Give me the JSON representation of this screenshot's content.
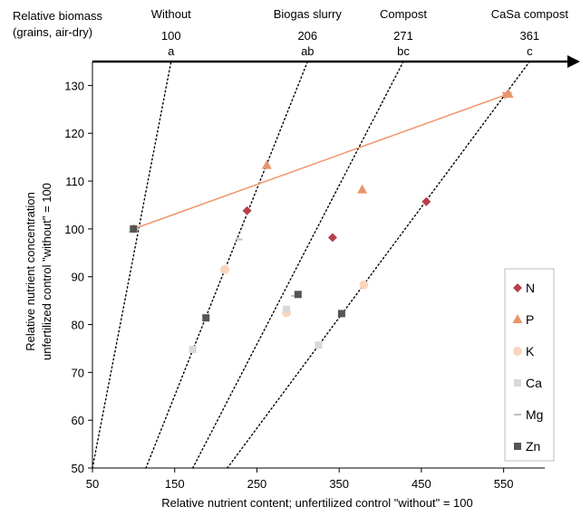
{
  "chart_data": {
    "type": "scatter",
    "title": "",
    "xlabel": "Relative nutrient content; unfertilized control \"without\" = 100",
    "ylabel_lines": [
      "Relative nutrient concentration",
      "unfertilized control \"without\" = 100"
    ],
    "biomass_label_lines": [
      "Relative biomass",
      "(grains, air-dry)"
    ],
    "xlim": [
      50,
      600
    ],
    "ylim": [
      50,
      135
    ],
    "x_ticks": [
      50,
      150,
      250,
      350,
      450,
      550
    ],
    "y_ticks": [
      50,
      60,
      70,
      80,
      90,
      100,
      110,
      120,
      130
    ],
    "grid": false,
    "legend_position": "right",
    "treatments": [
      {
        "name": "Without",
        "biomass": "100",
        "group": "a",
        "line": {
          "x_at_50": 50,
          "x_at_130": 140
        }
      },
      {
        "name": "Biogas slurry",
        "biomass": "206",
        "group": "ab",
        "line": {
          "x_at_50": 115,
          "x_at_130": 300
        }
      },
      {
        "name": "Compost",
        "biomass": "271",
        "group": "bc",
        "line": {
          "x_at_50": 172,
          "x_at_130": 413
        }
      },
      {
        "name": "CaSa compost",
        "biomass": "361",
        "group": "c",
        "line": {
          "x_at_50": 214,
          "x_at_130": 560
        }
      }
    ],
    "arrow": {
      "from": [
        100,
        100
      ],
      "to": [
        560,
        128.5
      ],
      "color": "#f0956a"
    },
    "series": [
      {
        "name": "N",
        "marker": "diamond",
        "color": "#b5404a",
        "points": [
          [
            100,
            100
          ],
          [
            238,
            103.8
          ],
          [
            342,
            98.2
          ],
          [
            456,
            105.7
          ]
        ]
      },
      {
        "name": "P",
        "marker": "triangle",
        "color": "#e8956a",
        "points": [
          [
            100,
            100
          ],
          [
            262,
            113.3
          ],
          [
            378,
            108.2
          ],
          [
            556,
            128.2
          ]
        ]
      },
      {
        "name": "K",
        "marker": "circle",
        "color": "#fbd5be",
        "points": [
          [
            100,
            100
          ],
          [
            211,
            91.5
          ],
          [
            286,
            82.5
          ],
          [
            380,
            88.3
          ]
        ]
      },
      {
        "name": "Ca",
        "marker": "square",
        "color": "#d8d8d8",
        "points": [
          [
            100,
            100
          ],
          [
            172,
            74.8
          ],
          [
            286,
            83.2
          ],
          [
            325,
            75.7
          ]
        ]
      },
      {
        "name": "Mg",
        "marker": "dash",
        "color": "#bdbdbd",
        "points": [
          [
            100,
            100
          ],
          [
            228,
            97.8
          ],
          [
            296,
            86.0
          ]
        ]
      },
      {
        "name": "Zn",
        "marker": "square",
        "color": "#555555",
        "points": [
          [
            100,
            100
          ],
          [
            188,
            81.4
          ],
          [
            300,
            86.3
          ],
          [
            353,
            82.3
          ]
        ]
      }
    ]
  }
}
